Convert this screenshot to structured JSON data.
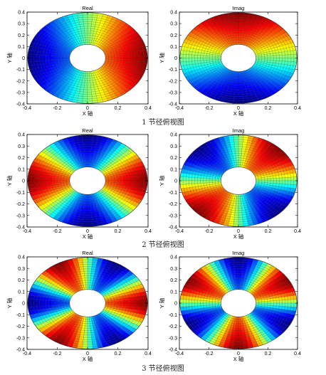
{
  "row_captions": [
    "1 节径俯视图",
    "2 节径俯视图",
    "3 节径俯视图"
  ],
  "chart_data": [
    {
      "type": "heatmap",
      "title": "Real",
      "xlabel": "X 轴",
      "ylabel": "Y 轴",
      "xlim": [
        -0.4,
        0.4
      ],
      "ylim": [
        -0.4,
        0.4
      ],
      "xticks": [
        "-0.4",
        "-0.2",
        "0",
        "0.2",
        "0.4"
      ],
      "yticks": [
        "0.4",
        "0.3",
        "0.2",
        "0.1",
        "0",
        "-0.1",
        "-0.2",
        "-0.3",
        "-0.4"
      ],
      "nodal_diameter": 1,
      "component": "cos",
      "colormap": "jet",
      "grid": true
    },
    {
      "type": "heatmap",
      "title": "Imag",
      "xlabel": "X 轴",
      "ylabel": "Y 轴",
      "xlim": [
        -0.4,
        0.4
      ],
      "ylim": [
        -0.4,
        0.4
      ],
      "xticks": [
        "-0.4",
        "-0.2",
        "0",
        "0.2",
        "0.4"
      ],
      "yticks": [
        "0.4",
        "0.3",
        "0.2",
        "0.1",
        "0",
        "-0.1",
        "-0.2",
        "-0.3",
        "-0.4"
      ],
      "nodal_diameter": 1,
      "component": "sin",
      "colormap": "jet",
      "grid": true
    },
    {
      "type": "heatmap",
      "title": "Real",
      "xlabel": "X 轴",
      "ylabel": "Y 轴",
      "xlim": [
        -0.4,
        0.4
      ],
      "ylim": [
        -0.4,
        0.4
      ],
      "xticks": [
        "-0.4",
        "-0.2",
        "0",
        "0.2",
        "0.4"
      ],
      "yticks": [
        "0.4",
        "0.3",
        "0.2",
        "0.1",
        "0",
        "-0.1",
        "-0.2",
        "-0.3",
        "-0.4"
      ],
      "nodal_diameter": 2,
      "component": "cos",
      "colormap": "jet",
      "grid": true
    },
    {
      "type": "heatmap",
      "title": "Imag",
      "xlabel": "X 轴",
      "ylabel": "Y 轴",
      "xlim": [
        -0.4,
        0.4
      ],
      "ylim": [
        -0.4,
        0.4
      ],
      "xticks": [
        "-0.4",
        "-0.2",
        "0",
        "0.2",
        "0.4"
      ],
      "yticks": [
        "0.4",
        "0.3",
        "0.2",
        "0.1",
        "0",
        "-0.1",
        "-0.2",
        "-0.3",
        "-0.4"
      ],
      "nodal_diameter": 2,
      "component": "sin",
      "colormap": "jet",
      "grid": true
    },
    {
      "type": "heatmap",
      "title": "Real",
      "xlabel": "X 轴",
      "ylabel": "Y 轴",
      "xlim": [
        -0.4,
        0.4
      ],
      "ylim": [
        -0.4,
        0.4
      ],
      "xticks": [
        "-0.4",
        "-0.2",
        "0",
        "0.2",
        "0.4"
      ],
      "yticks": [
        "0.4",
        "0.3",
        "0.2",
        "0.1",
        "0",
        "-0.1",
        "-0.2",
        "-0.3",
        "-0.4"
      ],
      "nodal_diameter": 3,
      "component": "cos",
      "colormap": "jet",
      "grid": true
    },
    {
      "type": "heatmap",
      "title": "Imag",
      "xlabel": "X 轴",
      "ylabel": "Y 轴",
      "xlim": [
        -0.4,
        0.4
      ],
      "ylim": [
        -0.4,
        0.4
      ],
      "xticks": [
        "-0.4",
        "-0.2",
        "0",
        "0.2",
        "0.4"
      ],
      "yticks": [
        "0.4",
        "0.3",
        "0.2",
        "0.1",
        "0",
        "-0.1",
        "-0.2",
        "-0.3",
        "-0.4"
      ],
      "nodal_diameter": 3,
      "component": "sin",
      "colormap": "jet",
      "grid": true
    }
  ]
}
